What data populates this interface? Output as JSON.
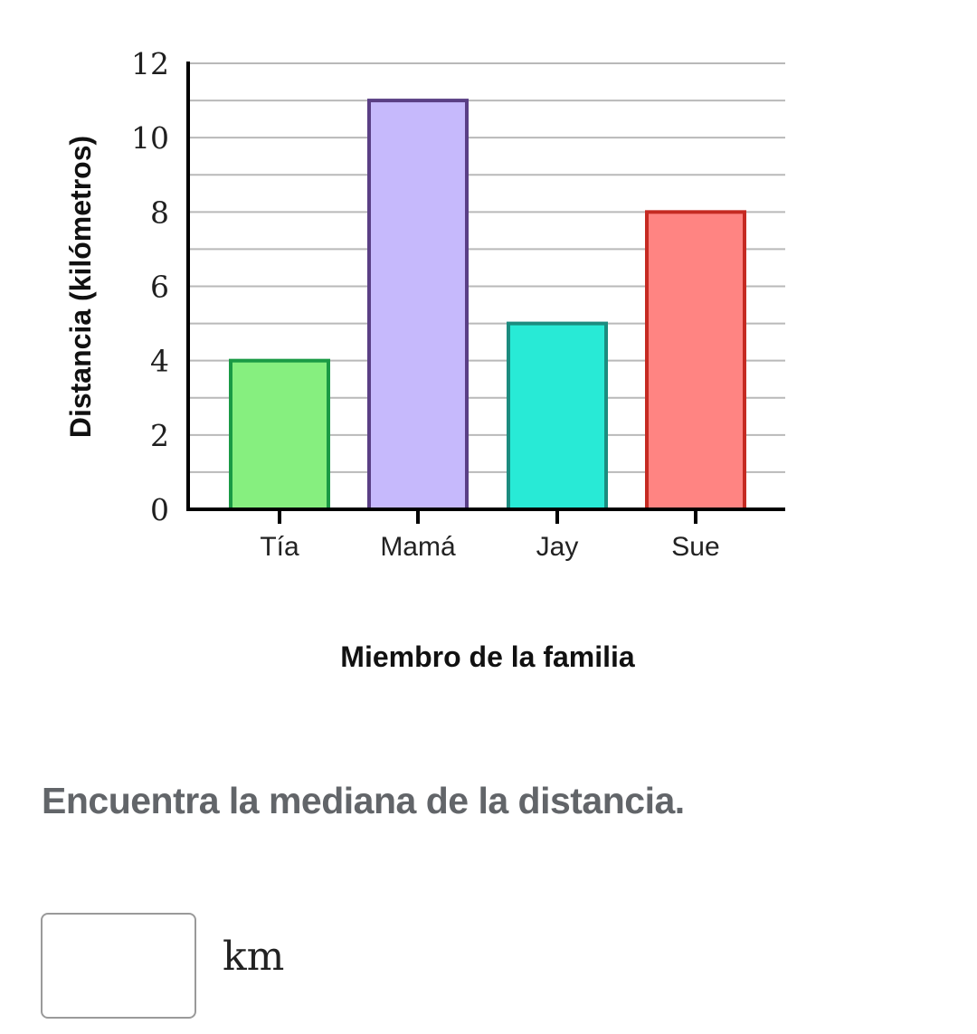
{
  "chart_data": {
    "type": "bar",
    "title": "",
    "xlabel": "Miembro de la familia",
    "ylabel": "Distancia (kilómetros)",
    "categories": [
      "Tía",
      "Mamá",
      "Jay",
      "Sue"
    ],
    "values": [
      4,
      11,
      5,
      8
    ],
    "ylim": [
      0,
      12
    ],
    "y_ticks": [
      0,
      2,
      4,
      6,
      8,
      10,
      12
    ],
    "y_tick_labels": [
      "0",
      "2",
      "4",
      "6",
      "8",
      "10",
      "12"
    ],
    "minor_gridlines_every": 1,
    "grid": true,
    "bar_fill_colors": [
      "#86EF7F",
      "#C6B9FC",
      "#28EAD6",
      "#FF8482"
    ],
    "bar_stroke_colors": [
      "#1A9A45",
      "#5A3F85",
      "#1B8C7F",
      "#C52A22"
    ]
  },
  "question": {
    "prompt": "Encuentra la mediana de la distancia.",
    "answer_value": "",
    "placeholder": "",
    "unit": "km"
  }
}
